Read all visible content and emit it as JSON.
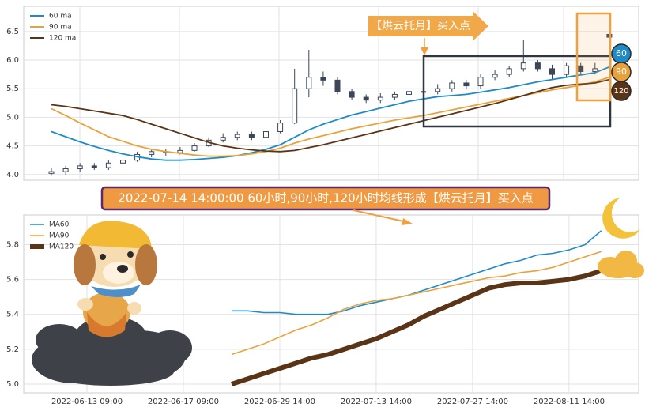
{
  "chart_data": [
    {
      "type": "candlestick-ma",
      "annotations": [
        "【烘云托月】买入点"
      ],
      "badges": [
        "60",
        "90",
        "120"
      ],
      "categories": [
        null,
        null,
        null,
        null,
        null,
        null,
        null,
        null,
        null,
        null,
        null,
        null,
        null,
        null,
        null,
        null,
        null,
        null,
        null,
        null,
        null,
        null,
        null,
        null,
        null,
        null,
        null,
        null,
        null,
        null,
        null,
        null,
        null,
        null,
        null,
        null,
        null,
        null,
        null,
        null
      ],
      "open": [
        4.02,
        4.05,
        4.1,
        4.15,
        4.12,
        4.2,
        4.25,
        4.35,
        4.4,
        4.38,
        4.42,
        4.5,
        4.6,
        4.65,
        4.7,
        4.65,
        4.75,
        4.9,
        5.5,
        5.7,
        5.65,
        5.45,
        5.35,
        5.3,
        5.35,
        5.4,
        5.45,
        5.45,
        5.5,
        5.6,
        5.55,
        5.7,
        5.75,
        5.85,
        5.95,
        5.85,
        5.75,
        5.9,
        5.8,
        6.45
      ],
      "high": [
        4.12,
        4.15,
        4.2,
        4.2,
        4.25,
        4.3,
        4.4,
        4.45,
        4.45,
        4.48,
        4.55,
        4.65,
        4.72,
        4.75,
        4.75,
        4.8,
        4.95,
        5.85,
        6.18,
        5.8,
        5.7,
        5.5,
        5.4,
        5.42,
        5.45,
        5.5,
        5.55,
        5.58,
        5.65,
        5.65,
        5.75,
        5.82,
        5.9,
        6.35,
        6.0,
        5.92,
        5.95,
        5.95,
        5.95,
        6.55
      ],
      "low": [
        3.98,
        4.0,
        4.05,
        4.08,
        4.08,
        4.15,
        4.22,
        4.3,
        4.33,
        4.35,
        4.4,
        4.48,
        4.56,
        4.6,
        4.6,
        4.62,
        4.72,
        4.88,
        5.35,
        5.55,
        5.4,
        5.3,
        5.25,
        5.25,
        5.3,
        5.35,
        5.4,
        5.4,
        5.45,
        5.5,
        5.5,
        5.65,
        5.7,
        5.8,
        5.8,
        5.65,
        5.7,
        5.75,
        5.75,
        6.3
      ],
      "close": [
        4.05,
        4.1,
        4.15,
        4.12,
        4.2,
        4.25,
        4.35,
        4.4,
        4.38,
        4.42,
        4.5,
        4.6,
        4.65,
        4.7,
        4.65,
        4.75,
        4.9,
        5.5,
        5.7,
        5.65,
        5.45,
        5.35,
        5.3,
        5.35,
        5.4,
        5.45,
        5.45,
        5.5,
        5.6,
        5.55,
        5.7,
        5.75,
        5.85,
        5.95,
        5.85,
        5.75,
        5.9,
        5.8,
        5.85,
        6.4
      ],
      "candle_color": "#3b4658",
      "series": [
        {
          "name": "60 ma",
          "color": "#1f8ac8",
          "values": [
            4.75,
            4.66,
            4.57,
            4.49,
            4.42,
            4.36,
            4.31,
            4.27,
            4.25,
            4.25,
            4.26,
            4.28,
            4.3,
            4.33,
            4.38,
            4.44,
            4.52,
            4.65,
            4.78,
            4.88,
            4.96,
            5.04,
            5.1,
            5.16,
            5.22,
            5.28,
            5.32,
            5.36,
            5.38,
            5.4,
            5.44,
            5.48,
            5.52,
            5.57,
            5.62,
            5.66,
            5.7,
            5.74,
            5.78,
            5.88
          ]
        },
        {
          "name": "90 ma",
          "color": "#e9a23b",
          "values": [
            5.15,
            5.03,
            4.9,
            4.78,
            4.66,
            4.58,
            4.5,
            4.44,
            4.4,
            4.37,
            4.34,
            4.32,
            4.32,
            4.33,
            4.36,
            4.4,
            4.46,
            4.55,
            4.62,
            4.68,
            4.74,
            4.8,
            4.85,
            4.9,
            4.95,
            4.99,
            5.03,
            5.08,
            5.13,
            5.18,
            5.23,
            5.28,
            5.33,
            5.38,
            5.43,
            5.48,
            5.52,
            5.56,
            5.62,
            5.7
          ]
        },
        {
          "name": "120 ma",
          "color": "#5a3417",
          "values": [
            5.22,
            5.19,
            5.15,
            5.11,
            5.07,
            5.03,
            4.96,
            4.88,
            4.8,
            4.72,
            4.64,
            4.56,
            4.5,
            4.46,
            4.43,
            4.41,
            4.4,
            4.42,
            4.47,
            4.52,
            4.58,
            4.64,
            4.7,
            4.76,
            4.82,
            4.88,
            4.94,
            5.0,
            5.06,
            5.12,
            5.18,
            5.24,
            5.31,
            5.38,
            5.45,
            5.52,
            5.56,
            5.58,
            5.6,
            5.66
          ]
        }
      ],
      "ylim": [
        3.9,
        6.94
      ],
      "yticks": [
        {
          "value": 4,
          "label": "4.0"
        },
        4.5,
        {
          "value": 5,
          "label": "5.0"
        },
        5.5,
        {
          "value": 6,
          "label": "6.0"
        },
        6.5
      ],
      "grid": true,
      "legend": "upper left"
    },
    {
      "type": "line",
      "title": "2022-07-14 14:00:00 60小时,90小时,120小时均线形成【烘云托月】买入点",
      "categories": [
        "2022-06-13 09:00",
        null,
        null,
        null,
        null,
        null,
        "2022-06-17 09:00",
        null,
        null,
        null,
        null,
        null,
        "2022-06-29 14:00",
        null,
        null,
        null,
        null,
        null,
        "2022-07-13 14:00",
        null,
        null,
        null,
        null,
        null,
        "2022-07-27 14:00",
        null,
        null,
        null,
        null,
        null,
        "2022-08-11 14:00",
        null,
        null,
        null
      ],
      "series": [
        {
          "name": "MA60",
          "color": "#1f8ac8",
          "width": 1.6,
          "values": [
            null,
            null,
            null,
            null,
            null,
            null,
            null,
            null,
            null,
            5.42,
            5.42,
            5.41,
            5.41,
            5.4,
            5.4,
            5.4,
            5.42,
            5.45,
            5.47,
            5.49,
            5.51,
            5.54,
            5.57,
            5.6,
            5.63,
            5.66,
            5.69,
            5.71,
            5.74,
            5.75,
            5.77,
            5.8,
            5.88,
            null
          ]
        },
        {
          "name": "MA90",
          "color": "#e9a23b",
          "width": 1.6,
          "values": [
            null,
            null,
            null,
            null,
            null,
            null,
            null,
            null,
            null,
            5.17,
            5.2,
            5.23,
            5.27,
            5.31,
            5.34,
            5.38,
            5.43,
            5.46,
            5.48,
            5.49,
            5.51,
            5.53,
            5.55,
            5.57,
            5.59,
            5.61,
            5.62,
            5.64,
            5.65,
            5.67,
            5.7,
            5.73,
            5.76,
            null
          ]
        },
        {
          "name": "MA120",
          "color": "#5a3417",
          "width": 6,
          "values": [
            null,
            null,
            null,
            null,
            null,
            null,
            null,
            null,
            null,
            5.0,
            5.03,
            5.06,
            5.09,
            5.12,
            5.15,
            5.17,
            5.2,
            5.23,
            5.26,
            5.3,
            5.34,
            5.39,
            5.43,
            5.47,
            5.51,
            5.55,
            5.57,
            5.58,
            5.58,
            5.59,
            5.6,
            5.62,
            5.65,
            null
          ]
        }
      ],
      "ylim": [
        4.95,
        5.97
      ],
      "yticks": [
        {
          "value": 5,
          "label": "5.0"
        },
        5.2,
        5.4,
        5.6,
        5.8
      ],
      "grid": true,
      "legend": "upper left"
    }
  ]
}
